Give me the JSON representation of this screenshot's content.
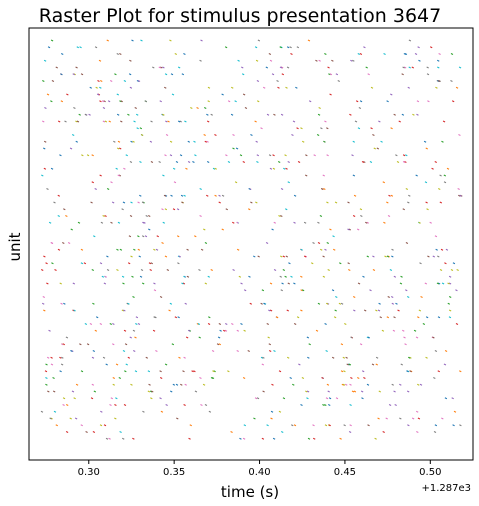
{
  "chart_data": {
    "type": "scatter",
    "title": "Raster Plot for stimulus presentation 3647",
    "xlabel": "time (s)",
    "ylabel": "unit",
    "x_offset_label": "+1.287e3",
    "xlim": [
      0.265,
      0.525
    ],
    "x_ticks": [
      0.3,
      0.35,
      0.4,
      0.45,
      0.5
    ],
    "x_tick_labels": [
      "0.30",
      "0.35",
      "0.40",
      "0.45",
      "0.50"
    ],
    "y_ticks": [],
    "grid": false,
    "legend": "none",
    "marker": "short vertical tick",
    "unit_count": 60,
    "density_per_unit": 16,
    "spike_colors": [
      "#1f77b4",
      "#ff7f0e",
      "#2ca02c",
      "#d62728",
      "#9467bd",
      "#8c564b",
      "#e377c2",
      "#7f7f7f",
      "#bcbd22",
      "#17becf"
    ]
  }
}
